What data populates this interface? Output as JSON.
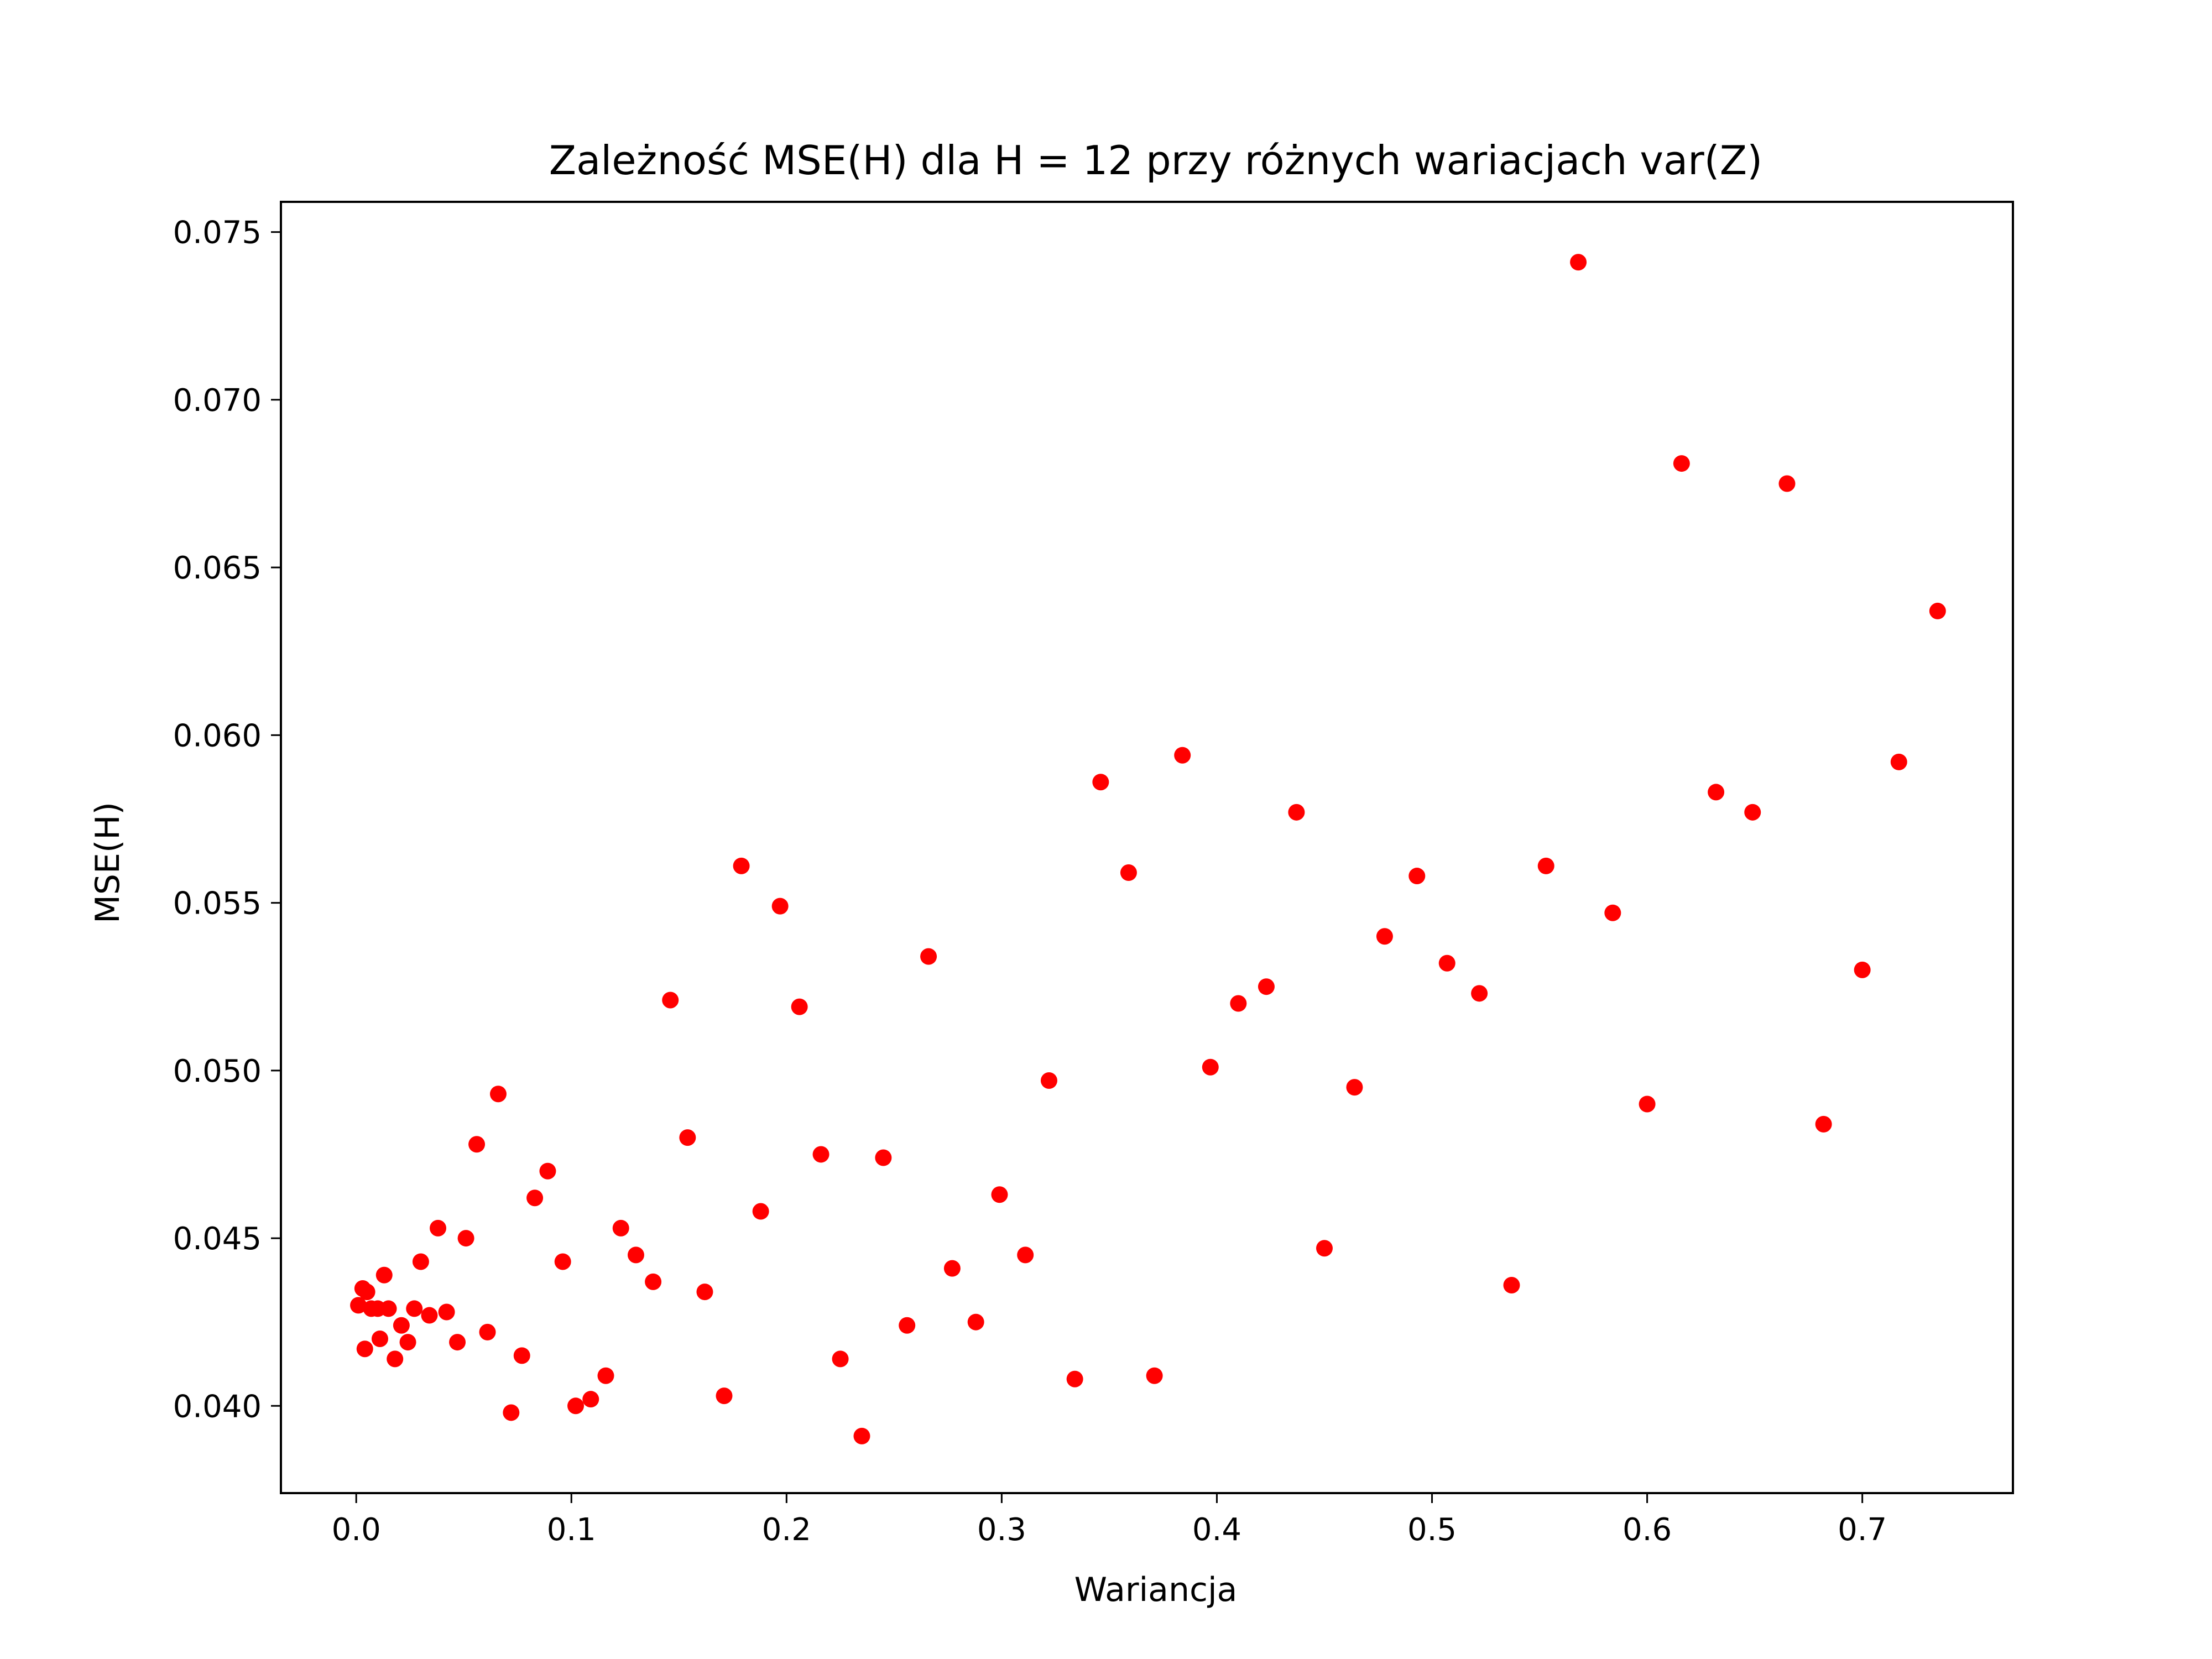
{
  "chart_data": {
    "type": "scatter",
    "title": "Zależność MSE(H) dla H = 12 przy różnych wariacjach var(Z)",
    "xlabel": "Wariancja",
    "ylabel": "MSE(H)",
    "xlim": [
      -0.035,
      0.77
    ],
    "ylim": [
      0.0374,
      0.0759
    ],
    "xticks": [
      0.0,
      0.1,
      0.2,
      0.3,
      0.4,
      0.5,
      0.6,
      0.7
    ],
    "xtick_labels": [
      "0.0",
      "0.1",
      "0.2",
      "0.3",
      "0.4",
      "0.5",
      "0.6",
      "0.7"
    ],
    "yticks": [
      0.04,
      0.045,
      0.05,
      0.055,
      0.06,
      0.065,
      0.07,
      0.075
    ],
    "ytick_labels": [
      "0.040",
      "0.045",
      "0.050",
      "0.055",
      "0.060",
      "0.065",
      "0.070",
      "0.075"
    ],
    "grid": false,
    "legend": "none",
    "marker_color": "#ff0000",
    "points": [
      [
        0.001,
        0.043
      ],
      [
        0.003,
        0.0435
      ],
      [
        0.004,
        0.0417
      ],
      [
        0.005,
        0.0434
      ],
      [
        0.007,
        0.0429
      ],
      [
        0.01,
        0.0429
      ],
      [
        0.011,
        0.042
      ],
      [
        0.013,
        0.0439
      ],
      [
        0.015,
        0.0429
      ],
      [
        0.018,
        0.0414
      ],
      [
        0.021,
        0.0424
      ],
      [
        0.024,
        0.0419
      ],
      [
        0.027,
        0.0429
      ],
      [
        0.03,
        0.0443
      ],
      [
        0.034,
        0.0427
      ],
      [
        0.038,
        0.0453
      ],
      [
        0.042,
        0.0428
      ],
      [
        0.047,
        0.0419
      ],
      [
        0.051,
        0.045
      ],
      [
        0.056,
        0.0478
      ],
      [
        0.061,
        0.0422
      ],
      [
        0.066,
        0.0493
      ],
      [
        0.072,
        0.0398
      ],
      [
        0.077,
        0.0415
      ],
      [
        0.083,
        0.0462
      ],
      [
        0.089,
        0.047
      ],
      [
        0.096,
        0.0443
      ],
      [
        0.102,
        0.04
      ],
      [
        0.109,
        0.0402
      ],
      [
        0.116,
        0.0409
      ],
      [
        0.123,
        0.0453
      ],
      [
        0.13,
        0.0445
      ],
      [
        0.138,
        0.0437
      ],
      [
        0.146,
        0.0521
      ],
      [
        0.154,
        0.048
      ],
      [
        0.162,
        0.0434
      ],
      [
        0.171,
        0.0403
      ],
      [
        0.179,
        0.0561
      ],
      [
        0.188,
        0.0458
      ],
      [
        0.197,
        0.0549
      ],
      [
        0.206,
        0.0519
      ],
      [
        0.216,
        0.0475
      ],
      [
        0.225,
        0.0414
      ],
      [
        0.235,
        0.0391
      ],
      [
        0.245,
        0.0474
      ],
      [
        0.256,
        0.0424
      ],
      [
        0.266,
        0.0534
      ],
      [
        0.277,
        0.0441
      ],
      [
        0.288,
        0.0425
      ],
      [
        0.299,
        0.0463
      ],
      [
        0.311,
        0.0445
      ],
      [
        0.322,
        0.0497
      ],
      [
        0.334,
        0.0408
      ],
      [
        0.346,
        0.0586
      ],
      [
        0.359,
        0.0559
      ],
      [
        0.371,
        0.0409
      ],
      [
        0.384,
        0.0594
      ],
      [
        0.397,
        0.0501
      ],
      [
        0.41,
        0.052
      ],
      [
        0.423,
        0.0525
      ],
      [
        0.437,
        0.0577
      ],
      [
        0.45,
        0.0447
      ],
      [
        0.464,
        0.0495
      ],
      [
        0.478,
        0.054
      ],
      [
        0.493,
        0.0558
      ],
      [
        0.507,
        0.0532
      ],
      [
        0.522,
        0.0523
      ],
      [
        0.537,
        0.0436
      ],
      [
        0.553,
        0.0561
      ],
      [
        0.568,
        0.0741
      ],
      [
        0.584,
        0.0547
      ],
      [
        0.6,
        0.049
      ],
      [
        0.616,
        0.0681
      ],
      [
        0.632,
        0.0583
      ],
      [
        0.649,
        0.0577
      ],
      [
        0.665,
        0.0675
      ],
      [
        0.682,
        0.0484
      ],
      [
        0.7,
        0.053
      ],
      [
        0.717,
        0.0592
      ],
      [
        0.735,
        0.0637
      ]
    ]
  }
}
